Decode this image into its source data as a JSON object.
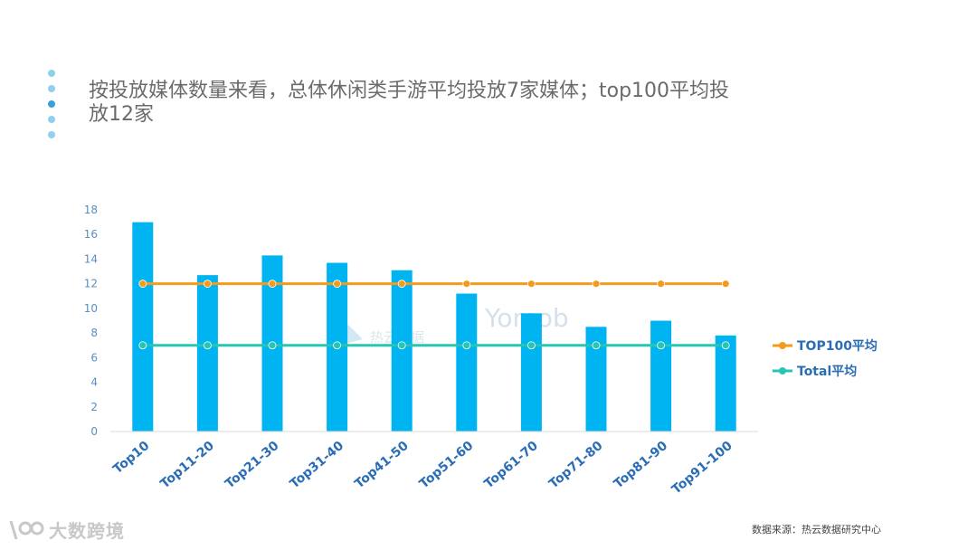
{
  "title": "按投放媒体数量来看，总体休闲类手游平均投放7家媒体；top100平均投放12家",
  "decor_dots": [
    "#8fd0ef",
    "#8fd0ef",
    "#3aa0dc",
    "#8fd0ef",
    "#8fd0ef"
  ],
  "chart_data": {
    "type": "bar",
    "categories": [
      "Top10",
      "Top11-20",
      "Top21-30",
      "Top31-40",
      "Top41-50",
      "Top51-60",
      "Top61-70",
      "Top71-80",
      "Top81-90",
      "Top91-100"
    ],
    "series": [
      {
        "name": "bars",
        "type": "bar",
        "values": [
          17,
          12.7,
          14.3,
          13.7,
          13.1,
          11.2,
          9.6,
          8.5,
          9,
          7.8
        ],
        "color": "#00b4f1"
      },
      {
        "name": "TOP100平均",
        "type": "line",
        "values": [
          12,
          12,
          12,
          12,
          12,
          12,
          12,
          12,
          12,
          12
        ],
        "color": "#f49b1b"
      },
      {
        "name": "Total平均",
        "type": "line",
        "values": [
          7,
          7,
          7,
          7,
          7,
          7,
          7,
          7,
          7,
          7
        ],
        "color": "#28c5b1"
      }
    ],
    "yticks": [
      "0",
      "2",
      "4",
      "6",
      "8",
      "10",
      "12",
      "14",
      "16",
      "18"
    ],
    "ylim": [
      0,
      18
    ],
    "legend": [
      "TOP100平均",
      "Total平均"
    ],
    "legend_position": "right"
  },
  "colors": {
    "axis_label": "#5a8fc0",
    "x_label": "#2a6db5"
  },
  "source": "数据来源：热云数据研究中心",
  "logo_text": "大数跨境",
  "watermark1": "热云数据",
  "watermark2": "Yomob"
}
